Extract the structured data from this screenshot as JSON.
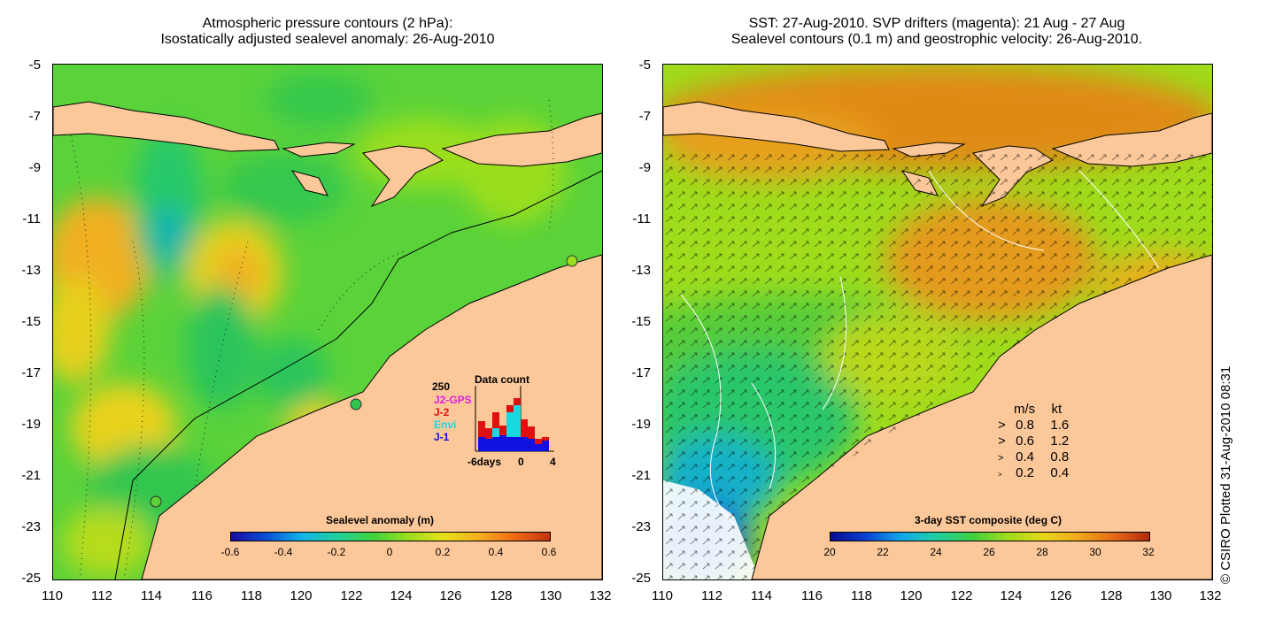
{
  "left_panel": {
    "title_line1": "Atmospheric pressure contours (2 hPa):",
    "title_line2": "Isostatically adjusted sealevel anomaly: 26-Aug-2010",
    "colorbar": {
      "label": "Sealevel anomaly (m)",
      "ticks": [
        "-0.6",
        "-0.4",
        "-0.2",
        "0",
        "0.2",
        "0.4",
        "0.6"
      ],
      "colors": [
        "#1a0aa0",
        "#0a4fd8",
        "#12b4e8",
        "#1fd19a",
        "#3fd23f",
        "#9ade1e",
        "#e8e01a",
        "#f5b01e",
        "#ee6a14",
        "#c43212"
      ]
    },
    "data_count": {
      "title": "Data count",
      "ymax_label": "250",
      "legend": [
        {
          "label": "J2-GPS",
          "color": "#e020e0"
        },
        {
          "label": "J-2",
          "color": "#e01010"
        },
        {
          "label": "Envi",
          "color": "#18d8e0"
        },
        {
          "label": "J-1",
          "color": "#1010e0"
        }
      ],
      "x_labels": [
        "-6days",
        "0",
        "4"
      ]
    }
  },
  "right_panel": {
    "title_line1": "SST: 27-Aug-2010. SVP drifters (magenta): 21 Aug - 27 Aug",
    "title_line2": "Sealevel contours (0.1 m) and geostrophic velocity: 26-Aug-2010.",
    "colorbar": {
      "label": "3-day SST composite (deg C)",
      "ticks": [
        "20",
        "22",
        "24",
        "26",
        "28",
        "30",
        "32"
      ],
      "colors": [
        "#0a0a90",
        "#0a40d0",
        "#12a8e8",
        "#20cfa0",
        "#40cf40",
        "#9edc1c",
        "#e6d81a",
        "#f0a81c",
        "#e46a12",
        "#b02a10"
      ]
    },
    "velocity_legend": {
      "header_ms": "m/s",
      "header_kt": "kt",
      "rows": [
        {
          "ms": "0.8",
          "kt": "1.6"
        },
        {
          "ms": "0.6",
          "kt": "1.2"
        },
        {
          "ms": "0.4",
          "kt": "0.8"
        },
        {
          "ms": "0.2",
          "kt": "0.4"
        }
      ]
    }
  },
  "axes": {
    "y_ticks": [
      "-5",
      "-7",
      "-9",
      "-11",
      "-13",
      "-15",
      "-17",
      "-19",
      "-21",
      "-23",
      "-25"
    ],
    "x_ticks": [
      "110",
      "112",
      "114",
      "116",
      "118",
      "120",
      "122",
      "124",
      "126",
      "128",
      "130",
      "132"
    ]
  },
  "credit": "© CSIRO Plotted 31-Aug-2010 08:31",
  "land_color": "#fcc89a"
}
